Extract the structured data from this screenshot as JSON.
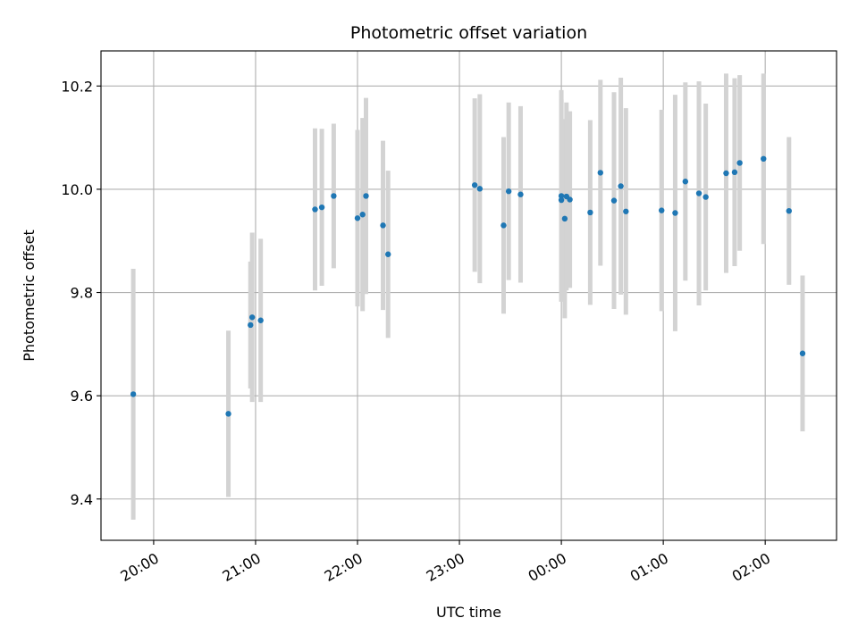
{
  "chart_data": {
    "type": "scatter",
    "title": "Photometric offset variation",
    "xlabel": "UTC time",
    "ylabel": "Photometric offset",
    "x_tick_labels": [
      "20:00",
      "21:00",
      "22:00",
      "23:00",
      "00:00",
      "01:00",
      "02:00"
    ],
    "y_tick_labels": [
      "9.4",
      "9.6",
      "9.8",
      "10.0",
      "10.2"
    ],
    "y_ticks": [
      9.4,
      9.6,
      9.8,
      10.0,
      10.2
    ],
    "ylim": [
      9.32,
      10.268
    ],
    "grid": true,
    "legend": false,
    "marker_color": "#1f77b4",
    "errorbar_color": "#d3d3d3",
    "x_ticks_time": [
      "19:59",
      "20:59",
      "21:59",
      "22:59",
      "23:59",
      "00:59",
      "01:59"
    ],
    "xlim_time": [
      "19:28",
      "02:41"
    ],
    "points": [
      {
        "time": "19:47",
        "y": 9.603,
        "yerr": 0.243
      },
      {
        "time": "20:43",
        "y": 9.565,
        "yerr": 0.161
      },
      {
        "time": "20:56",
        "y": 9.737,
        "yerr": 0.123
      },
      {
        "time": "20:57",
        "y": 9.752,
        "yerr": 0.164
      },
      {
        "time": "21:02",
        "y": 9.746,
        "yerr": 0.158
      },
      {
        "time": "21:34",
        "y": 9.961,
        "yerr": 0.157
      },
      {
        "time": "21:38",
        "y": 9.965,
        "yerr": 0.152
      },
      {
        "time": "21:45",
        "y": 9.987,
        "yerr": 0.14
      },
      {
        "time": "21:59",
        "y": 9.944,
        "yerr": 0.171
      },
      {
        "time": "22:02",
        "y": 9.951,
        "yerr": 0.187
      },
      {
        "time": "22:04",
        "y": 9.987,
        "yerr": 0.19
      },
      {
        "time": "22:14",
        "y": 9.93,
        "yerr": 0.164
      },
      {
        "time": "22:17",
        "y": 9.874,
        "yerr": 0.162
      },
      {
        "time": "23:08",
        "y": 10.008,
        "yerr": 0.168
      },
      {
        "time": "23:11",
        "y": 10.001,
        "yerr": 0.183
      },
      {
        "time": "23:25",
        "y": 9.93,
        "yerr": 0.171
      },
      {
        "time": "23:28",
        "y": 9.996,
        "yerr": 0.172
      },
      {
        "time": "23:35",
        "y": 9.99,
        "yerr": 0.171
      },
      {
        "time": "23:59",
        "y": 9.987,
        "yerr": 0.205
      },
      {
        "time": "23:59",
        "y": 9.979,
        "yerr": 0.195
      },
      {
        "time": "00:01",
        "y": 9.943,
        "yerr": 0.193
      },
      {
        "time": "00:02",
        "y": 9.986,
        "yerr": 0.182
      },
      {
        "time": "00:04",
        "y": 9.98,
        "yerr": 0.171
      },
      {
        "time": "00:16",
        "y": 9.955,
        "yerr": 0.179
      },
      {
        "time": "00:22",
        "y": 10.032,
        "yerr": 0.18
      },
      {
        "time": "00:30",
        "y": 9.978,
        "yerr": 0.21
      },
      {
        "time": "00:34",
        "y": 10.006,
        "yerr": 0.21
      },
      {
        "time": "00:37",
        "y": 9.957,
        "yerr": 0.2
      },
      {
        "time": "00:58",
        "y": 9.959,
        "yerr": 0.195
      },
      {
        "time": "01:06",
        "y": 9.954,
        "yerr": 0.229
      },
      {
        "time": "01:12",
        "y": 10.015,
        "yerr": 0.192
      },
      {
        "time": "01:20",
        "y": 9.992,
        "yerr": 0.217
      },
      {
        "time": "01:24",
        "y": 9.985,
        "yerr": 0.181
      },
      {
        "time": "01:36",
        "y": 10.031,
        "yerr": 0.193
      },
      {
        "time": "01:41",
        "y": 10.033,
        "yerr": 0.182
      },
      {
        "time": "01:44",
        "y": 10.051,
        "yerr": 0.17
      },
      {
        "time": "01:58",
        "y": 10.059,
        "yerr": 0.165
      },
      {
        "time": "02:13",
        "y": 9.958,
        "yerr": 0.143
      },
      {
        "time": "02:21",
        "y": 9.682,
        "yerr": 0.151
      }
    ]
  }
}
